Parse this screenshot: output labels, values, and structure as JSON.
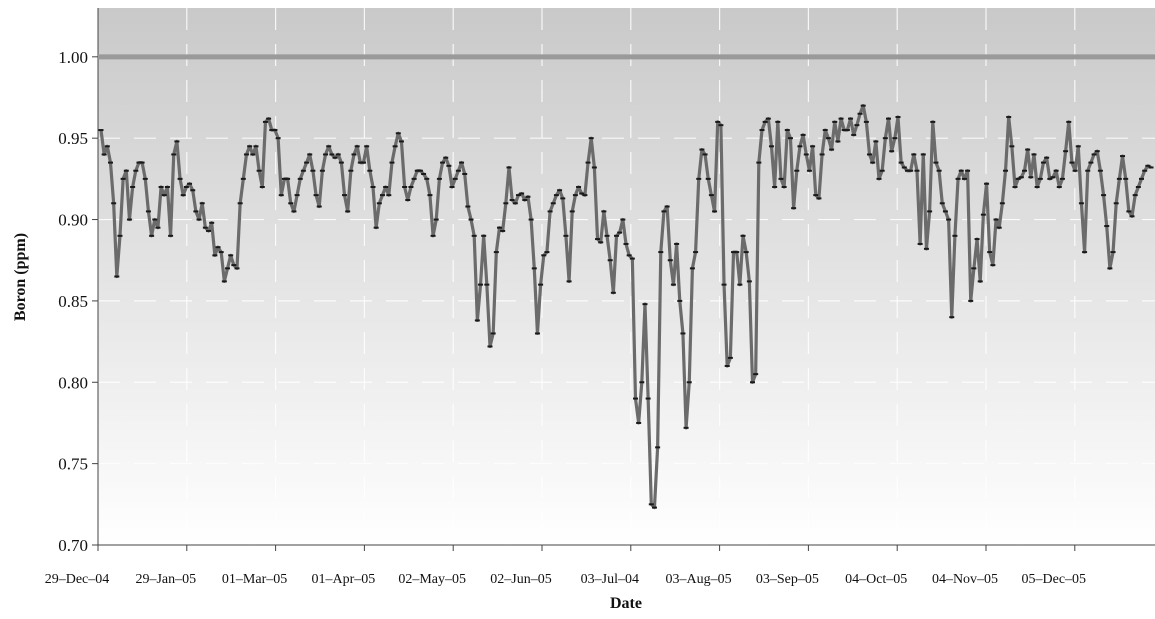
{
  "chart_data": {
    "type": "line",
    "title": "",
    "xlabel": "Date",
    "ylabel": "Boron (ppm)",
    "ylim": [
      0.7,
      1.03
    ],
    "y_ticks": [
      "0.70",
      "0.75",
      "0.80",
      "0.85",
      "0.90",
      "0.95",
      "1.00"
    ],
    "x_tick_labels": [
      "29–Dec–04",
      "29–Jan–05",
      "01–Mar–05",
      "01–Apr–05",
      "02–May–05",
      "02–Jun–05",
      "03–Jul–04",
      "03–Aug–05",
      "03–Sep–05",
      "04–Oct–05",
      "04–Nov–05",
      "05–Dec–05"
    ],
    "grid": "dashed horizontal and vertical",
    "background": "vertical gradient, gray at top to white at bottom",
    "series": [
      {
        "color": "#6b6b6b",
        "marker_color": "#1a1a1a",
        "x_start_label": "29–Dec–04",
        "step_days": 1,
        "values": [
          0.955,
          0.94,
          0.945,
          0.935,
          0.91,
          0.865,
          0.89,
          0.925,
          0.93,
          0.9,
          0.92,
          0.93,
          0.935,
          0.935,
          0.925,
          0.905,
          0.89,
          0.9,
          0.895,
          0.92,
          0.915,
          0.92,
          0.89,
          0.94,
          0.948,
          0.925,
          0.915,
          0.92,
          0.922,
          0.918,
          0.905,
          0.9,
          0.91,
          0.895,
          0.893,
          0.898,
          0.878,
          0.883,
          0.88,
          0.862,
          0.87,
          0.878,
          0.872,
          0.87,
          0.91,
          0.925,
          0.94,
          0.945,
          0.94,
          0.945,
          0.93,
          0.92,
          0.96,
          0.962,
          0.955,
          0.955,
          0.95,
          0.915,
          0.925,
          0.925,
          0.91,
          0.905,
          0.915,
          0.925,
          0.93,
          0.935,
          0.94,
          0.93,
          0.915,
          0.908,
          0.93,
          0.94,
          0.945,
          0.94,
          0.938,
          0.94,
          0.935,
          0.915,
          0.905,
          0.93,
          0.94,
          0.945,
          0.935,
          0.935,
          0.945,
          0.93,
          0.92,
          0.895,
          0.91,
          0.915,
          0.92,
          0.915,
          0.935,
          0.945,
          0.953,
          0.948,
          0.92,
          0.912,
          0.92,
          0.925,
          0.93,
          0.93,
          0.928,
          0.925,
          0.915,
          0.89,
          0.9,
          0.925,
          0.935,
          0.938,
          0.933,
          0.92,
          0.925,
          0.93,
          0.935,
          0.928,
          0.908,
          0.9,
          0.89,
          0.838,
          0.86,
          0.89,
          0.86,
          0.822,
          0.83,
          0.88,
          0.895,
          0.893,
          0.91,
          0.932,
          0.912,
          0.91,
          0.915,
          0.916,
          0.912,
          0.914,
          0.9,
          0.87,
          0.83,
          0.86,
          0.878,
          0.88,
          0.905,
          0.91,
          0.915,
          0.918,
          0.913,
          0.89,
          0.862,
          0.905,
          0.915,
          0.92,
          0.916,
          0.915,
          0.935,
          0.95,
          0.932,
          0.888,
          0.886,
          0.905,
          0.89,
          0.875,
          0.855,
          0.89,
          0.892,
          0.9,
          0.885,
          0.878,
          0.876,
          0.79,
          0.775,
          0.8,
          0.848,
          0.79,
          0.725,
          0.723,
          0.76,
          0.88,
          0.905,
          0.908,
          0.875,
          0.86,
          0.885,
          0.85,
          0.83,
          0.772,
          0.8,
          0.87,
          0.88,
          0.925,
          0.943,
          0.94,
          0.925,
          0.915,
          0.905,
          0.96,
          0.958,
          0.86,
          0.81,
          0.815,
          0.88,
          0.88,
          0.86,
          0.89,
          0.88,
          0.862,
          0.8,
          0.805,
          0.935,
          0.955,
          0.96,
          0.962,
          0.945,
          0.92,
          0.96,
          0.925,
          0.92,
          0.955,
          0.95,
          0.907,
          0.93,
          0.945,
          0.952,
          0.94,
          0.93,
          0.945,
          0.915,
          0.913,
          0.94,
          0.955,
          0.95,
          0.943,
          0.96,
          0.948,
          0.962,
          0.955,
          0.955,
          0.962,
          0.952,
          0.958,
          0.965,
          0.97,
          0.96,
          0.94,
          0.935,
          0.948,
          0.925,
          0.93,
          0.95,
          0.962,
          0.942,
          0.95,
          0.963,
          0.935,
          0.932,
          0.93,
          0.93,
          0.94,
          0.93,
          0.885,
          0.94,
          0.882,
          0.905,
          0.96,
          0.935,
          0.93,
          0.91,
          0.905,
          0.9,
          0.84,
          0.89,
          0.925,
          0.93,
          0.925,
          0.93,
          0.85,
          0.87,
          0.888,
          0.862,
          0.903,
          0.922,
          0.88,
          0.872,
          0.9,
          0.895,
          0.91,
          0.93,
          0.963,
          0.945,
          0.92,
          0.925,
          0.926,
          0.93,
          0.943,
          0.926,
          0.94,
          0.92,
          0.925,
          0.935,
          0.938,
          0.925,
          0.926,
          0.93,
          0.92,
          0.925,
          0.942,
          0.96,
          0.935,
          0.93,
          0.945,
          0.91,
          0.88,
          0.93,
          0.935,
          0.94,
          0.942,
          0.93,
          0.915,
          0.896,
          0.87,
          0.88,
          0.91,
          0.925,
          0.939,
          0.925,
          0.905,
          0.902,
          0.915,
          0.92,
          0.925,
          0.93,
          0.933,
          0.932
        ]
      }
    ],
    "reference_line": {
      "value": 1.0,
      "color": "#9a9a9a"
    }
  }
}
